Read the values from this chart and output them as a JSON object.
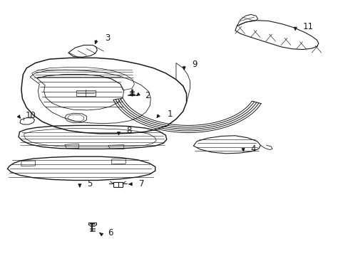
{
  "background_color": "#ffffff",
  "line_color": "#1a1a1a",
  "fig_width": 4.89,
  "fig_height": 3.6,
  "dpi": 100,
  "label_positions": {
    "1": [
      0.46,
      0.535,
      0.44,
      0.51
    ],
    "2": [
      0.415,
      0.62,
      0.39,
      0.62
    ],
    "3": [
      0.295,
      0.845,
      0.28,
      0.815
    ],
    "4": [
      0.715,
      0.415,
      0.69,
      0.395
    ],
    "5": [
      0.245,
      0.275,
      0.23,
      0.255
    ],
    "6": [
      0.305,
      0.085,
      0.285,
      0.085
    ],
    "7": [
      0.395,
      0.275,
      0.365,
      0.275
    ],
    "8": [
      0.355,
      0.48,
      0.34,
      0.455
    ],
    "9": [
      0.545,
      0.745,
      0.525,
      0.715
    ],
    "10": [
      0.075,
      0.545,
      0.065,
      0.52
    ],
    "11": [
      0.865,
      0.895,
      0.845,
      0.87
    ]
  }
}
